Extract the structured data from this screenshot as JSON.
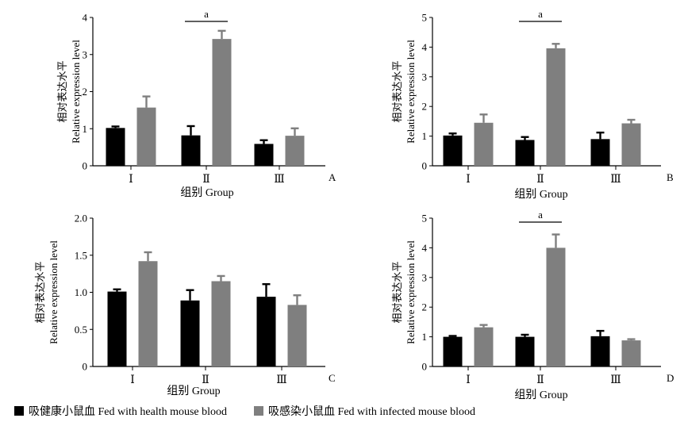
{
  "shared": {
    "ylabel_cn": "相对表达水平",
    "ylabel_en": "Relative expression level",
    "xlabel": "组别 Group",
    "categories": [
      "Ⅰ",
      "Ⅱ",
      "Ⅲ"
    ]
  },
  "legend": {
    "items": [
      {
        "label": "吸健康小鼠血 Fed with health mouse blood",
        "color": "#000000"
      },
      {
        "label": "吸感染小鼠血 Fed with infected mouse blood",
        "color": "#7f7f7f"
      }
    ]
  },
  "chart_data": [
    {
      "type": "bar",
      "panel_label": "A",
      "categories": [
        "Ⅰ",
        "Ⅱ",
        "Ⅲ"
      ],
      "ylim": [
        0,
        4
      ],
      "yticks": [
        "0",
        "1",
        "2",
        "3",
        "4"
      ],
      "series": [
        {
          "name": "吸健康小鼠血 Fed with health mouse blood",
          "color": "#000000",
          "values": [
            1.02,
            0.82,
            0.59
          ],
          "errors": [
            0.04,
            0.25,
            0.1
          ]
        },
        {
          "name": "吸感染小鼠血 Fed with infected mouse blood",
          "color": "#7f7f7f",
          "values": [
            1.57,
            3.42,
            0.81
          ],
          "errors": [
            0.3,
            0.22,
            0.2
          ]
        }
      ],
      "significance": [
        {
          "category": "Ⅱ",
          "label": "a"
        }
      ]
    },
    {
      "type": "bar",
      "panel_label": "B",
      "categories": [
        "Ⅰ",
        "Ⅱ",
        "Ⅲ"
      ],
      "ylim": [
        0,
        5
      ],
      "yticks": [
        "0",
        "1",
        "2",
        "3",
        "4",
        "5"
      ],
      "series": [
        {
          "name": "吸健康小鼠血 Fed with health mouse blood",
          "color": "#000000",
          "values": [
            1.02,
            0.87,
            0.9
          ],
          "errors": [
            0.07,
            0.1,
            0.22
          ]
        },
        {
          "name": "吸感染小鼠血 Fed with infected mouse blood",
          "color": "#7f7f7f",
          "values": [
            1.45,
            3.96,
            1.43
          ],
          "errors": [
            0.28,
            0.15,
            0.12
          ]
        }
      ],
      "significance": [
        {
          "category": "Ⅱ",
          "label": "a"
        }
      ]
    },
    {
      "type": "bar",
      "panel_label": "C",
      "categories": [
        "Ⅰ",
        "Ⅱ",
        "Ⅲ"
      ],
      "ylim": [
        0,
        2
      ],
      "yticks": [
        "0",
        "0.5",
        "1.0",
        "1.5",
        "2.0"
      ],
      "series": [
        {
          "name": "吸健康小鼠血 Fed with health mouse blood",
          "color": "#000000",
          "values": [
            1.01,
            0.89,
            0.94
          ],
          "errors": [
            0.03,
            0.14,
            0.17
          ]
        },
        {
          "name": "吸感染小鼠血 Fed with infected mouse blood",
          "color": "#7f7f7f",
          "values": [
            1.42,
            1.15,
            0.83
          ],
          "errors": [
            0.12,
            0.07,
            0.13
          ]
        }
      ],
      "significance": []
    },
    {
      "type": "bar",
      "panel_label": "D",
      "categories": [
        "Ⅰ",
        "Ⅱ",
        "Ⅲ"
      ],
      "ylim": [
        0,
        5
      ],
      "yticks": [
        "0",
        "1",
        "2",
        "3",
        "4",
        "5"
      ],
      "series": [
        {
          "name": "吸健康小鼠血 Fed with health mouse blood",
          "color": "#000000",
          "values": [
            1.0,
            1.0,
            1.02
          ],
          "errors": [
            0.03,
            0.07,
            0.18
          ]
        },
        {
          "name": "吸感染小鼠血 Fed with infected mouse blood",
          "color": "#7f7f7f",
          "values": [
            1.32,
            4.0,
            0.88
          ],
          "errors": [
            0.08,
            0.45,
            0.04
          ]
        }
      ],
      "significance": [
        {
          "category": "Ⅱ",
          "label": "a"
        }
      ]
    }
  ]
}
